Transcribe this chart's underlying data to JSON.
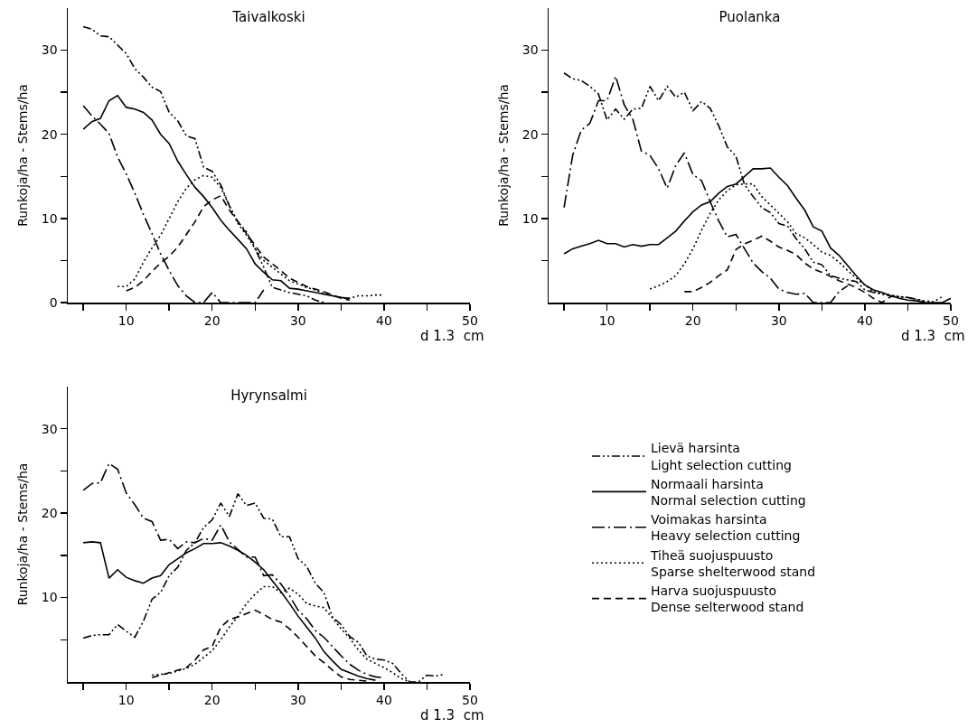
{
  "chart_data": [
    {
      "type": "line",
      "title": "Taivalkoski",
      "xlabel": "d 1.3  cm",
      "ylabel": "Runkoja/ha - Stems/ha",
      "xlim": [
        3.2,
        50
      ],
      "xticks": [
        {
          "value": 5,
          "label": null
        },
        10,
        {
          "value": 15,
          "label": null
        },
        20,
        {
          "value": 25,
          "label": null
        },
        30,
        {
          "value": 35,
          "label": null
        },
        40,
        {
          "value": 45,
          "label": null
        },
        50
      ],
      "ylim": [
        0,
        35
      ],
      "yticks": [
        0,
        {
          "value": 5,
          "label": null
        },
        10,
        {
          "value": 15,
          "label": null
        },
        20,
        {
          "value": 25,
          "label": null
        },
        30
      ],
      "grid": false,
      "legend": false,
      "series": [
        {
          "color": "#000000",
          "line_style": "dashdotdot",
          "x": [
            5,
            6,
            7,
            8,
            9,
            10,
            11,
            12,
            13,
            14,
            15,
            16,
            17,
            18,
            19,
            20,
            21,
            22,
            23,
            24,
            25,
            26,
            27,
            28,
            29,
            30,
            31,
            32,
            33
          ],
          "values": [
            32.8,
            32.5,
            31.7,
            31.6,
            30.6,
            29.6,
            27.8,
            26.8,
            25.6,
            25.1,
            22.6,
            21.6,
            19.8,
            19.5,
            16.1,
            15.6,
            14,
            11.5,
            9.6,
            8.4,
            6.4,
            4.2,
            1.8,
            1.5,
            1.2,
            1,
            0.8,
            0.3,
            0
          ]
        },
        {
          "color": "#000000",
          "line_style": "solid",
          "x": [
            5,
            6,
            7,
            8,
            9,
            10,
            11,
            12,
            13,
            14,
            15,
            16,
            17,
            18,
            19,
            20,
            21,
            22,
            23,
            24,
            25,
            26,
            27,
            28,
            29,
            30,
            31,
            32,
            33,
            34,
            35,
            36
          ],
          "values": [
            20.6,
            21.5,
            21.9,
            24,
            24.6,
            23.2,
            23,
            22.6,
            21.7,
            20,
            18.9,
            16.8,
            15.2,
            13.7,
            12.6,
            11.3,
            9.8,
            8.6,
            7.5,
            6.4,
            4.6,
            3.6,
            2.7,
            2.6,
            1.7,
            1.6,
            1.4,
            1.2,
            1,
            0.8,
            0.6,
            0.5
          ]
        },
        {
          "color": "#000000",
          "line_style": "longdashdot",
          "x": [
            5,
            6,
            7,
            8,
            9,
            10,
            11,
            12,
            13,
            14,
            15,
            16,
            17,
            18,
            19,
            20,
            21,
            22,
            23,
            24,
            25,
            26
          ],
          "values": [
            23.4,
            22.2,
            21.2,
            20.1,
            17.3,
            15.3,
            13,
            10.5,
            8.2,
            5.8,
            3.8,
            2,
            0.8,
            0,
            0,
            1.2,
            0,
            0,
            0,
            0,
            0,
            1.5
          ]
        },
        {
          "color": "#000000",
          "line_style": "dotted",
          "x": [
            9,
            10,
            11,
            12,
            13,
            14,
            15,
            16,
            17,
            18,
            19,
            20,
            21,
            22,
            23,
            24,
            25,
            26,
            27,
            28,
            29,
            30,
            31,
            32,
            33,
            34,
            35,
            36,
            37,
            38,
            39,
            40
          ],
          "values": [
            1.9,
            1.9,
            2.8,
            4.8,
            6.5,
            8,
            10,
            12,
            13.6,
            14.6,
            15.1,
            14.9,
            13.7,
            11.5,
            9.4,
            8,
            6.4,
            5,
            4.2,
            3.4,
            2.6,
            2.2,
            1.8,
            1.5,
            1.1,
            0.8,
            0.6,
            0.5,
            0.8,
            0.8,
            0.9,
            0.9
          ]
        },
        {
          "color": "#000000",
          "line_style": "dashed",
          "x": [
            10,
            11,
            12,
            13,
            14,
            15,
            16,
            17,
            18,
            19,
            20,
            21,
            22,
            23,
            24,
            25,
            26,
            27,
            28,
            29,
            30,
            31,
            32,
            33,
            34,
            35,
            36
          ],
          "values": [
            1.4,
            1.8,
            2.6,
            3.7,
            4.7,
            5.5,
            6.6,
            8.1,
            9.6,
            11.4,
            12.2,
            12.7,
            11,
            9.6,
            8.2,
            6.8,
            5.4,
            4.6,
            3.8,
            2.9,
            2.4,
            1.9,
            1.6,
            1.3,
            0.9,
            0.5,
            0.3
          ]
        }
      ]
    },
    {
      "type": "line",
      "title": "Puolanka",
      "xlabel": "d 1.3  cm",
      "ylabel": "Runkoja/ha - Stems/ha",
      "xlim": [
        3.2,
        50
      ],
      "xticks": [
        {
          "value": 5,
          "label": null
        },
        10,
        {
          "value": 15,
          "label": null
        },
        20,
        {
          "value": 25,
          "label": null
        },
        30,
        {
          "value": 35,
          "label": null
        },
        40,
        {
          "value": 45,
          "label": null
        },
        50
      ],
      "ylim": [
        0,
        35
      ],
      "yticks": [
        {
          "value": 5,
          "label": null
        },
        10,
        {
          "value": 15,
          "label": null
        },
        20,
        {
          "value": 25,
          "label": null
        },
        30
      ],
      "grid": false,
      "legend": false,
      "series": [
        {
          "color": "#000000",
          "line_style": "dashdotdot",
          "x": [
            5,
            6,
            7,
            8,
            9,
            10,
            11,
            12,
            13,
            14,
            15,
            16,
            17,
            18,
            19,
            20,
            21,
            22,
            23,
            24,
            25,
            26,
            27,
            28,
            29,
            30,
            31,
            32,
            33,
            34,
            35,
            36,
            37,
            38,
            39,
            40,
            41,
            42,
            43,
            44,
            45,
            46,
            47
          ],
          "values": [
            27.3,
            26.6,
            26.4,
            25.7,
            24.8,
            21.7,
            23,
            21.8,
            23,
            23.1,
            25.7,
            24,
            25.7,
            24.4,
            25,
            22.8,
            23.9,
            23.1,
            21,
            18.5,
            17.4,
            14,
            12.6,
            11.3,
            10.7,
            9.4,
            9.1,
            7.6,
            6.4,
            4.8,
            4.5,
            3.2,
            2.9,
            2.7,
            2.5,
            1.5,
            1.2,
            1,
            0.8,
            0.7,
            0.6,
            0.4,
            0.1
          ]
        },
        {
          "color": "#000000",
          "line_style": "solid",
          "x": [
            5,
            6,
            7,
            8,
            9,
            10,
            11,
            12,
            13,
            14,
            15,
            16,
            17,
            18,
            19,
            20,
            21,
            22,
            23,
            24,
            25,
            26,
            27,
            28,
            29,
            30,
            31,
            32,
            33,
            34,
            35,
            36,
            37,
            38,
            39,
            40,
            41,
            42,
            43,
            44,
            45,
            46,
            47,
            48,
            49,
            50
          ],
          "values": [
            5.8,
            6.4,
            6.7,
            7,
            7.4,
            7,
            7,
            6.6,
            6.9,
            6.7,
            6.9,
            6.9,
            7.7,
            8.5,
            9.7,
            10.8,
            11.6,
            12,
            13,
            13.8,
            14.1,
            15,
            15.9,
            15.9,
            16,
            14.9,
            13.9,
            12.4,
            11,
            9,
            8.5,
            6.5,
            5.6,
            4.4,
            3.2,
            2.1,
            1.5,
            1.2,
            0.8,
            0.5,
            0.3,
            0.2,
            0,
            0,
            0,
            0.5
          ]
        },
        {
          "color": "#000000",
          "line_style": "longdashdot",
          "x": [
            5,
            6,
            7,
            8,
            9,
            10,
            11,
            12,
            13,
            14,
            15,
            16,
            17,
            18,
            19,
            20,
            21,
            22,
            23,
            24,
            25,
            26,
            27,
            28,
            29,
            30,
            31,
            32,
            33,
            34,
            35,
            36,
            37,
            38
          ],
          "values": [
            11.3,
            17.5,
            20.5,
            21.3,
            24,
            24,
            26.9,
            23.5,
            21.8,
            18,
            17.5,
            15.9,
            13.6,
            16.3,
            17.8,
            15.2,
            14.5,
            12,
            9.7,
            7.8,
            8.1,
            6.4,
            4.7,
            3.7,
            2.9,
            1.6,
            1.2,
            1,
            1.1,
            0,
            0,
            0,
            1.3,
            2
          ]
        },
        {
          "color": "#000000",
          "line_style": "dotted",
          "x": [
            15,
            16,
            17,
            18,
            19,
            20,
            21,
            22,
            23,
            24,
            25,
            26,
            27,
            28,
            29,
            30,
            31,
            32,
            33,
            34,
            35,
            36,
            37,
            38,
            39,
            40,
            41,
            42,
            43,
            44,
            45,
            46,
            47,
            48,
            49
          ],
          "values": [
            1.6,
            2,
            2.5,
            3.2,
            4.6,
            6.4,
            8.6,
            10.6,
            12.2,
            13.3,
            14,
            14.1,
            14.1,
            12.6,
            11.6,
            10.6,
            9.6,
            8.2,
            7.7,
            6.9,
            6,
            5.6,
            4.8,
            3.8,
            2.9,
            2.1,
            1.3,
            1.1,
            0.9,
            0.7,
            0.6,
            0.4,
            0.2,
            0.1,
            0.7
          ]
        },
        {
          "color": "#000000",
          "line_style": "dashed",
          "x": [
            19,
            20,
            21,
            22,
            23,
            24,
            25,
            26,
            27,
            28,
            29,
            30,
            31,
            32,
            33,
            34,
            35,
            36,
            37,
            38,
            39,
            40,
            41,
            42,
            43,
            44
          ],
          "values": [
            1.3,
            1.3,
            1.8,
            2.4,
            3.2,
            3.9,
            6.3,
            7,
            7.4,
            7.9,
            7.3,
            6.6,
            6.2,
            5.7,
            4.7,
            4,
            3.6,
            3.1,
            2.6,
            2.2,
            1.8,
            1.2,
            0.5,
            0,
            0.7,
            0.9
          ]
        }
      ]
    },
    {
      "type": "line",
      "title": "Hyrynsalmi",
      "xlabel": "d 1.3  cm",
      "ylabel": "Runkoja/ha - Stems/ha",
      "xlim": [
        3.2,
        50
      ],
      "xticks": [
        {
          "value": 5,
          "label": null
        },
        10,
        {
          "value": 15,
          "label": null
        },
        20,
        {
          "value": 25,
          "label": null
        },
        30,
        {
          "value": 35,
          "label": null
        },
        40,
        {
          "value": 45,
          "label": null
        },
        50
      ],
      "ylim": [
        0,
        35
      ],
      "yticks": [
        {
          "value": 5,
          "label": null
        },
        10,
        {
          "value": 15,
          "label": null
        },
        20,
        {
          "value": 25,
          "label": null
        },
        30
      ],
      "grid": false,
      "legend": "right",
      "series": [
        {
          "name": "Lievä harsinta\nLight selection cutting",
          "color": "#000000",
          "line_style": "dashdotdot",
          "x": [
            5,
            6,
            7,
            8,
            9,
            10,
            11,
            12,
            13,
            14,
            15,
            16,
            17,
            18,
            19,
            20,
            21,
            22,
            23,
            24,
            25,
            26,
            27,
            28,
            29,
            30,
            31,
            32,
            33,
            34,
            35,
            36,
            37,
            38,
            39,
            40,
            41,
            42,
            43,
            44,
            45,
            46,
            47
          ],
          "values": [
            5.2,
            5.5,
            5.6,
            5.6,
            6.8,
            6,
            5.3,
            7.2,
            9.8,
            10.6,
            12.6,
            13.6,
            15.6,
            16.5,
            18.3,
            19.2,
            21.2,
            19.6,
            22.3,
            20.9,
            21.2,
            19.4,
            19.3,
            17.2,
            17.2,
            14.6,
            13.7,
            11.7,
            10.6,
            7.7,
            6.8,
            5.4,
            4.7,
            3.1,
            2.7,
            2.6,
            2.2,
            1,
            0,
            0,
            0.8,
            0.7,
            0.9
          ]
        },
        {
          "name": "Normaali harsinta\nNormal selection cutting",
          "color": "#000000",
          "line_style": "solid",
          "x": [
            5,
            6,
            7,
            8,
            9,
            10,
            11,
            12,
            13,
            14,
            15,
            16,
            17,
            18,
            19,
            20,
            21,
            22,
            23,
            24,
            25,
            26,
            27,
            28,
            29,
            30,
            31,
            32,
            33,
            34,
            35,
            36,
            37,
            38,
            39
          ],
          "values": [
            16.5,
            16.6,
            16.5,
            12.3,
            13.3,
            12.4,
            12,
            11.7,
            12.3,
            12.6,
            13.9,
            14.6,
            15.3,
            15.8,
            16.4,
            16.4,
            16.5,
            16.1,
            15.6,
            15,
            14.2,
            13.3,
            12,
            10.7,
            9.3,
            7.8,
            6.5,
            5.2,
            3.6,
            2.5,
            1.5,
            1.1,
            0.7,
            0.4,
            0.2
          ]
        },
        {
          "name": "Voimakas harsinta\nHeavy selection cutting",
          "color": "#000000",
          "line_style": "longdashdot",
          "x": [
            5,
            6,
            7,
            8,
            9,
            10,
            11,
            12,
            13,
            14,
            15,
            16,
            17,
            18,
            19,
            20,
            21,
            22,
            23,
            24,
            25,
            26,
            27,
            28,
            29,
            30,
            31,
            32,
            33,
            34,
            35,
            36,
            37,
            38,
            39,
            40
          ],
          "values": [
            22.7,
            23.5,
            23.6,
            25.9,
            25.2,
            22.4,
            21,
            19.4,
            19,
            16.8,
            16.9,
            15.8,
            16.6,
            16.5,
            17,
            16.8,
            18.6,
            16.6,
            15.7,
            14.8,
            14.8,
            12.6,
            12.7,
            11.6,
            10.2,
            8.5,
            7.5,
            6.1,
            5.3,
            4.2,
            3.1,
            2.1,
            1.4,
            0.9,
            0.6,
            0.5
          ]
        },
        {
          "name": "Tiheä suojuspuusto\nSparse shelterwood stand",
          "color": "#000000",
          "line_style": "dotted",
          "x": [
            13,
            14,
            15,
            16,
            17,
            18,
            19,
            20,
            21,
            22,
            23,
            24,
            25,
            26,
            27,
            28,
            29,
            30,
            31,
            32,
            33,
            34,
            35,
            36,
            37,
            38,
            39,
            40,
            41,
            42,
            43
          ],
          "values": [
            0.8,
            0.9,
            1,
            1.3,
            1.6,
            2.1,
            2.9,
            3.7,
            5,
            6.5,
            7.8,
            9.3,
            10.4,
            11.3,
            11.3,
            10.6,
            11.1,
            10.4,
            9.3,
            9,
            8.8,
            7.6,
            6.3,
            5.2,
            3.8,
            2.7,
            2.2,
            1.7,
            1.1,
            0.4,
            0
          ]
        },
        {
          "name": "Harva suojuspuusto\nDense selterwood stand",
          "color": "#000000",
          "line_style": "dashed",
          "x": [
            13,
            14,
            15,
            16,
            17,
            18,
            19,
            20,
            21,
            22,
            23,
            24,
            25,
            26,
            27,
            28,
            29,
            30,
            31,
            32,
            33,
            34,
            35,
            36,
            37,
            38
          ],
          "values": [
            0.5,
            0.8,
            1.1,
            1.4,
            1.7,
            2.6,
            3.8,
            4.2,
            6.5,
            7.4,
            7.7,
            8.1,
            8.5,
            8,
            7.4,
            7.1,
            6.3,
            5.3,
            4.2,
            3.1,
            2.3,
            1.4,
            0.6,
            0.3,
            0.2,
            0.1
          ]
        }
      ]
    }
  ]
}
